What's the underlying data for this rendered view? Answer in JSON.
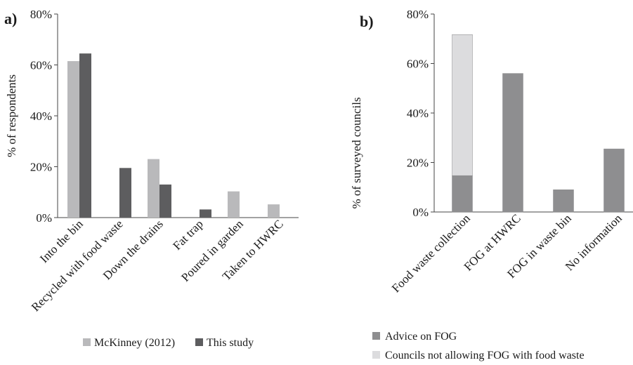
{
  "chart_data": [
    {
      "panel_label": "a)",
      "type": "bar",
      "categories": [
        "Into the bin",
        "Recycled with food waste",
        "Down the drains",
        "Fat trap",
        "Poured in garden",
        "Taken to HWRC"
      ],
      "series": [
        {
          "name": "McKinney (2012)",
          "color": "#b9b9bb",
          "values": [
            61.5,
            0,
            23,
            0,
            10.3,
            5.2
          ]
        },
        {
          "name": "This study",
          "color": "#5d5d5f",
          "values": [
            64.5,
            19.5,
            13,
            3.2,
            0,
            0
          ]
        }
      ],
      "ylabel": "% of respondents",
      "xlabel": "",
      "ylim": [
        0,
        80
      ],
      "yticks": [
        "0%",
        "20%",
        "40%",
        "60%",
        "80%"
      ],
      "grid": false,
      "legend_position": "bottom"
    },
    {
      "panel_label": "b)",
      "type": "bar",
      "stacked": true,
      "categories": [
        "Food waste collection",
        "FOG at HWRC",
        "FOG in waste bin",
        "No information"
      ],
      "series": [
        {
          "name": "Advice on FOG",
          "color": "#8e8e90",
          "values": [
            14.7,
            56,
            9,
            25.5
          ]
        },
        {
          "name": "Councils not allowing FOG with food waste",
          "color": "#dcdcde",
          "values": [
            57,
            0,
            0,
            0
          ]
        }
      ],
      "ylabel": "% of surveyed councils",
      "xlabel": "",
      "ylim": [
        0,
        80
      ],
      "yticks": [
        "0%",
        "20%",
        "40%",
        "60%",
        "80%"
      ],
      "grid": false,
      "legend_position": "bottom"
    }
  ]
}
